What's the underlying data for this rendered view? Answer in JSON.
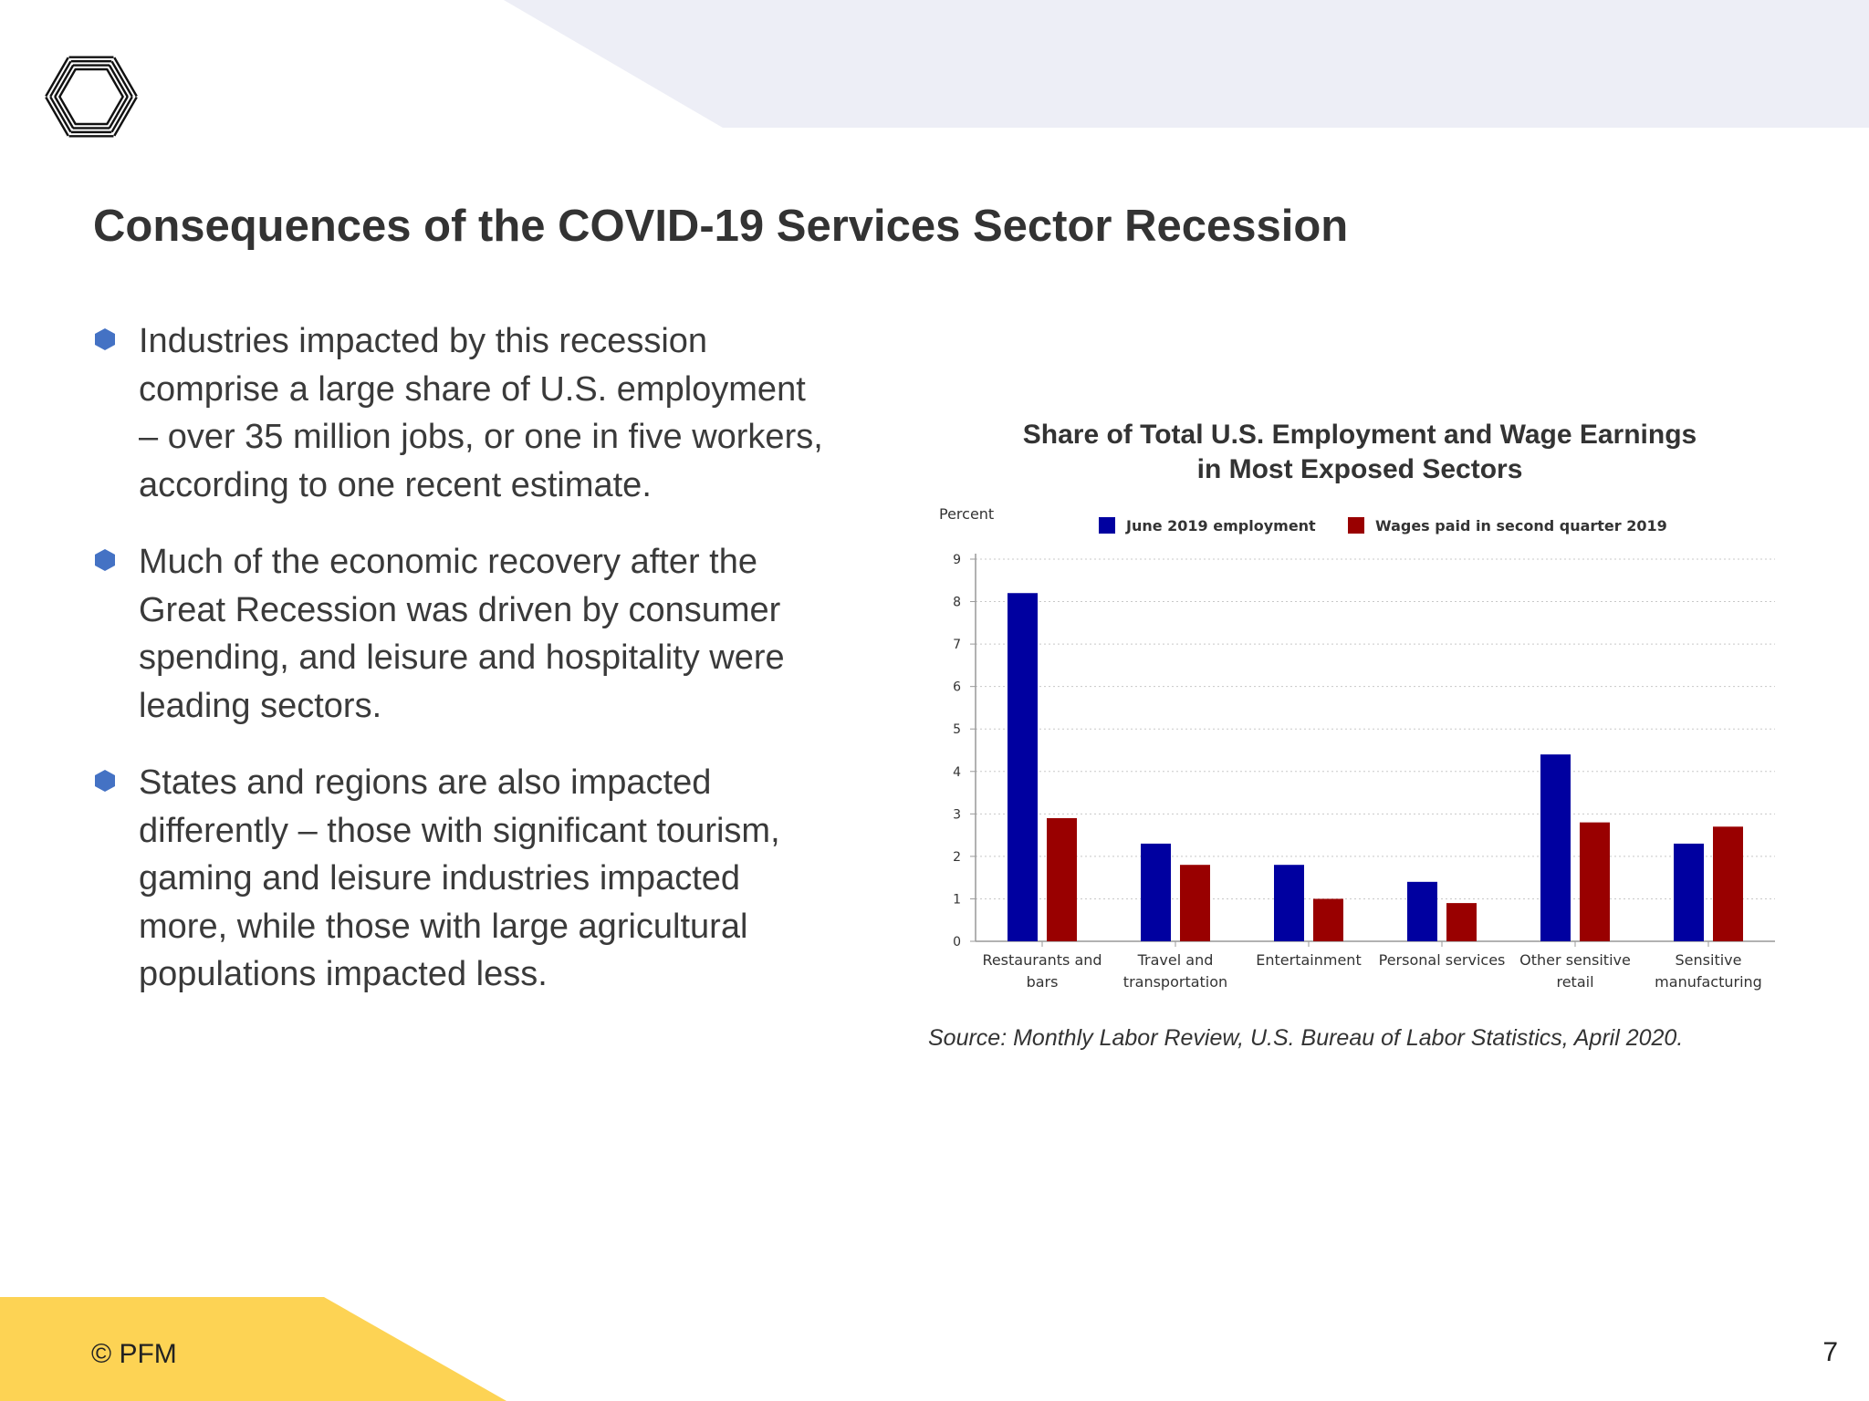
{
  "slide": {
    "title": "Consequences of the COVID-19 Services Sector Recession",
    "bullets": [
      "Industries impacted by this recession comprise a large share of U.S. employment – over 35 million jobs, or one in five workers, according to one recent estimate.",
      "Much of the economic recovery after the Great Recession was driven by consumer spending, and leisure and hospitality were leading sectors.",
      "States and regions are also impacted differently – those with significant tourism, gaming and leisure industries impacted more, while those with large agricultural populations impacted less."
    ],
    "source": "Source: Monthly Labor Review, U.S. Bureau of Labor Statistics, April 2020.",
    "copyright": "© PFM",
    "page_number": "7",
    "colors": {
      "accent_yellow": "#FDD354",
      "header_band": "#EDEEF6",
      "bullet_blue": "#4472C4"
    },
    "icons": {
      "logo": "pfm-logo-icon",
      "bullet": "hexagon-bullet-icon"
    }
  },
  "chart_data": {
    "type": "bar",
    "title_lines": [
      "Share of Total U.S. Employment and Wage Earnings",
      "in Most Exposed Sectors"
    ],
    "ylabel": "Percent",
    "xlabel": "",
    "ylim": [
      0,
      9
    ],
    "yticks": [
      "0",
      "1",
      "2",
      "3",
      "4",
      "5",
      "6",
      "7",
      "8",
      "9"
    ],
    "grid": true,
    "legend_position": "top",
    "categories": [
      [
        "Restaurants and",
        "bars"
      ],
      [
        "Travel and",
        "transportation"
      ],
      [
        "Entertainment"
      ],
      [
        "Personal services"
      ],
      [
        "Other sensitive",
        "retail"
      ],
      [
        "Sensitive",
        "manufacturing"
      ]
    ],
    "series": [
      {
        "name": "June 2019 employment",
        "color": "#0000A0",
        "values": [
          8.2,
          2.3,
          1.8,
          1.4,
          4.4,
          2.3
        ]
      },
      {
        "name": "Wages paid in second quarter 2019",
        "color": "#990000",
        "values": [
          2.9,
          1.8,
          1.0,
          0.9,
          2.8,
          2.7
        ]
      }
    ]
  }
}
